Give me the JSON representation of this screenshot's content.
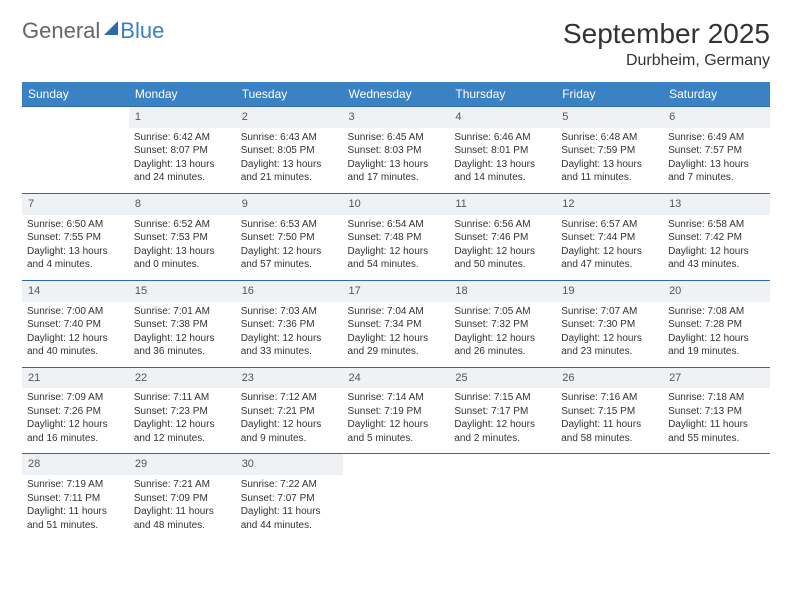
{
  "brand": {
    "general": "General",
    "blue": "Blue"
  },
  "title": "September 2025",
  "location": "Durbheim, Germany",
  "colors": {
    "header_bg": "#3b82c4",
    "header_text": "#ffffff",
    "daynum_bg": "#eef2f5",
    "daynum_border": "#2f6aa8",
    "body_text": "#333333",
    "logo_gray": "#666666",
    "logo_blue": "#3b7fc4",
    "page_bg": "#ffffff"
  },
  "typography": {
    "title_fontsize": 28,
    "location_fontsize": 16,
    "header_fontsize": 12,
    "daynum_fontsize": 11,
    "cell_fontsize": 10
  },
  "weekdays": [
    "Sunday",
    "Monday",
    "Tuesday",
    "Wednesday",
    "Thursday",
    "Friday",
    "Saturday"
  ],
  "weeks": [
    {
      "nums": [
        "",
        "1",
        "2",
        "3",
        "4",
        "5",
        "6"
      ],
      "cells": [
        null,
        {
          "sunrise": "Sunrise: 6:42 AM",
          "sunset": "Sunset: 8:07 PM",
          "daylight": "Daylight: 13 hours and 24 minutes."
        },
        {
          "sunrise": "Sunrise: 6:43 AM",
          "sunset": "Sunset: 8:05 PM",
          "daylight": "Daylight: 13 hours and 21 minutes."
        },
        {
          "sunrise": "Sunrise: 6:45 AM",
          "sunset": "Sunset: 8:03 PM",
          "daylight": "Daylight: 13 hours and 17 minutes."
        },
        {
          "sunrise": "Sunrise: 6:46 AM",
          "sunset": "Sunset: 8:01 PM",
          "daylight": "Daylight: 13 hours and 14 minutes."
        },
        {
          "sunrise": "Sunrise: 6:48 AM",
          "sunset": "Sunset: 7:59 PM",
          "daylight": "Daylight: 13 hours and 11 minutes."
        },
        {
          "sunrise": "Sunrise: 6:49 AM",
          "sunset": "Sunset: 7:57 PM",
          "daylight": "Daylight: 13 hours and 7 minutes."
        }
      ]
    },
    {
      "nums": [
        "7",
        "8",
        "9",
        "10",
        "11",
        "12",
        "13"
      ],
      "cells": [
        {
          "sunrise": "Sunrise: 6:50 AM",
          "sunset": "Sunset: 7:55 PM",
          "daylight": "Daylight: 13 hours and 4 minutes."
        },
        {
          "sunrise": "Sunrise: 6:52 AM",
          "sunset": "Sunset: 7:53 PM",
          "daylight": "Daylight: 13 hours and 0 minutes."
        },
        {
          "sunrise": "Sunrise: 6:53 AM",
          "sunset": "Sunset: 7:50 PM",
          "daylight": "Daylight: 12 hours and 57 minutes."
        },
        {
          "sunrise": "Sunrise: 6:54 AM",
          "sunset": "Sunset: 7:48 PM",
          "daylight": "Daylight: 12 hours and 54 minutes."
        },
        {
          "sunrise": "Sunrise: 6:56 AM",
          "sunset": "Sunset: 7:46 PM",
          "daylight": "Daylight: 12 hours and 50 minutes."
        },
        {
          "sunrise": "Sunrise: 6:57 AM",
          "sunset": "Sunset: 7:44 PM",
          "daylight": "Daylight: 12 hours and 47 minutes."
        },
        {
          "sunrise": "Sunrise: 6:58 AM",
          "sunset": "Sunset: 7:42 PM",
          "daylight": "Daylight: 12 hours and 43 minutes."
        }
      ]
    },
    {
      "nums": [
        "14",
        "15",
        "16",
        "17",
        "18",
        "19",
        "20"
      ],
      "cells": [
        {
          "sunrise": "Sunrise: 7:00 AM",
          "sunset": "Sunset: 7:40 PM",
          "daylight": "Daylight: 12 hours and 40 minutes."
        },
        {
          "sunrise": "Sunrise: 7:01 AM",
          "sunset": "Sunset: 7:38 PM",
          "daylight": "Daylight: 12 hours and 36 minutes."
        },
        {
          "sunrise": "Sunrise: 7:03 AM",
          "sunset": "Sunset: 7:36 PM",
          "daylight": "Daylight: 12 hours and 33 minutes."
        },
        {
          "sunrise": "Sunrise: 7:04 AM",
          "sunset": "Sunset: 7:34 PM",
          "daylight": "Daylight: 12 hours and 29 minutes."
        },
        {
          "sunrise": "Sunrise: 7:05 AM",
          "sunset": "Sunset: 7:32 PM",
          "daylight": "Daylight: 12 hours and 26 minutes."
        },
        {
          "sunrise": "Sunrise: 7:07 AM",
          "sunset": "Sunset: 7:30 PM",
          "daylight": "Daylight: 12 hours and 23 minutes."
        },
        {
          "sunrise": "Sunrise: 7:08 AM",
          "sunset": "Sunset: 7:28 PM",
          "daylight": "Daylight: 12 hours and 19 minutes."
        }
      ]
    },
    {
      "nums": [
        "21",
        "22",
        "23",
        "24",
        "25",
        "26",
        "27"
      ],
      "cells": [
        {
          "sunrise": "Sunrise: 7:09 AM",
          "sunset": "Sunset: 7:26 PM",
          "daylight": "Daylight: 12 hours and 16 minutes."
        },
        {
          "sunrise": "Sunrise: 7:11 AM",
          "sunset": "Sunset: 7:23 PM",
          "daylight": "Daylight: 12 hours and 12 minutes."
        },
        {
          "sunrise": "Sunrise: 7:12 AM",
          "sunset": "Sunset: 7:21 PM",
          "daylight": "Daylight: 12 hours and 9 minutes."
        },
        {
          "sunrise": "Sunrise: 7:14 AM",
          "sunset": "Sunset: 7:19 PM",
          "daylight": "Daylight: 12 hours and 5 minutes."
        },
        {
          "sunrise": "Sunrise: 7:15 AM",
          "sunset": "Sunset: 7:17 PM",
          "daylight": "Daylight: 12 hours and 2 minutes."
        },
        {
          "sunrise": "Sunrise: 7:16 AM",
          "sunset": "Sunset: 7:15 PM",
          "daylight": "Daylight: 11 hours and 58 minutes."
        },
        {
          "sunrise": "Sunrise: 7:18 AM",
          "sunset": "Sunset: 7:13 PM",
          "daylight": "Daylight: 11 hours and 55 minutes."
        }
      ]
    },
    {
      "nums": [
        "28",
        "29",
        "30",
        "",
        "",
        "",
        ""
      ],
      "cells": [
        {
          "sunrise": "Sunrise: 7:19 AM",
          "sunset": "Sunset: 7:11 PM",
          "daylight": "Daylight: 11 hours and 51 minutes."
        },
        {
          "sunrise": "Sunrise: 7:21 AM",
          "sunset": "Sunset: 7:09 PM",
          "daylight": "Daylight: 11 hours and 48 minutes."
        },
        {
          "sunrise": "Sunrise: 7:22 AM",
          "sunset": "Sunset: 7:07 PM",
          "daylight": "Daylight: 11 hours and 44 minutes."
        },
        null,
        null,
        null,
        null
      ]
    }
  ]
}
